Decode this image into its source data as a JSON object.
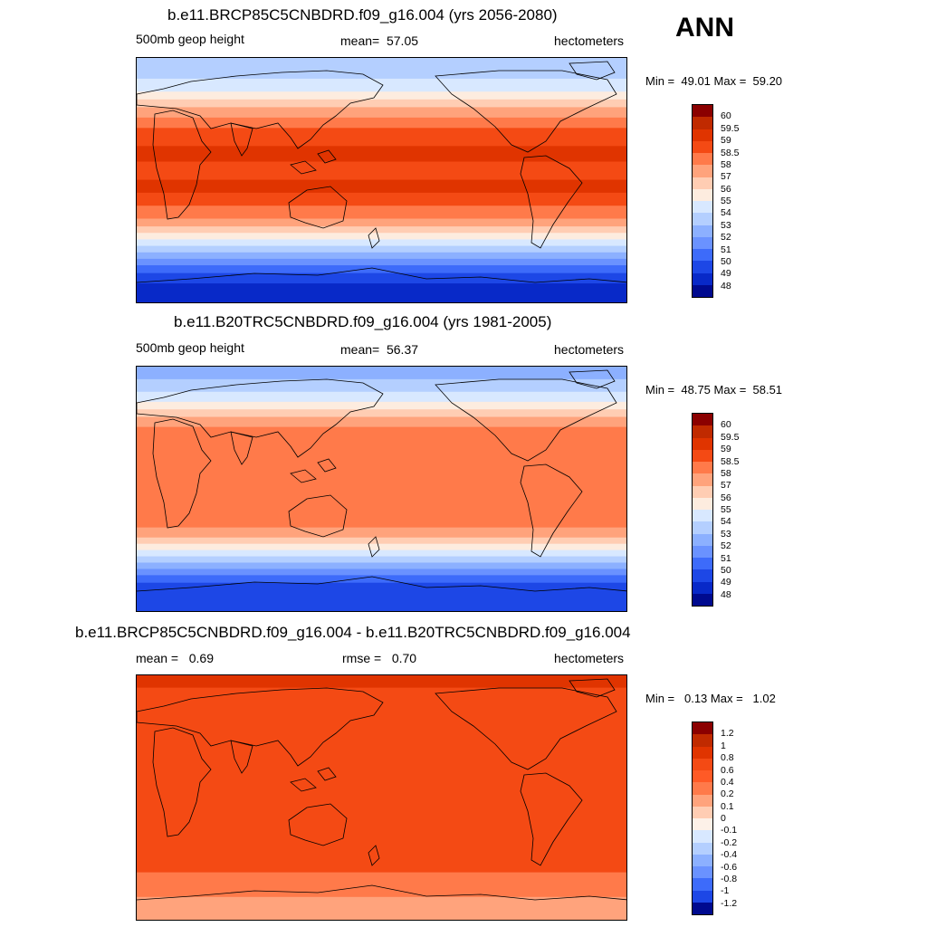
{
  "header": {
    "season": "ANN"
  },
  "panels": [
    {
      "title": "b.e11.BRCP85C5CNBDRD.f09_g16.004 (yrs 2056-2080)",
      "left_label": "500mb geop height",
      "center_label": "mean=  57.05",
      "right_label": "hectometers",
      "minmax": "Min =  49.01 Max =  59.20",
      "colorbar": {
        "labels": [
          "60",
          "59.5",
          "59",
          "58.5",
          "58",
          "57",
          "56",
          "55",
          "54",
          "53",
          "52",
          "51",
          "50",
          "49",
          "48"
        ],
        "colors": [
          "#8b0000",
          "#c02a00",
          "#e03400",
          "#f44a14",
          "#ff7a4a",
          "#ffa37c",
          "#ffcdb3",
          "#fdecdf",
          "#d8e8ff",
          "#b4cfff",
          "#8cb0ff",
          "#6a92ff",
          "#3d6bfa",
          "#1d47e6",
          "#0829c8",
          "#000a8f"
        ]
      },
      "field": {
        "bands": [
          {
            "color": "#b4cfff",
            "h": 0.08
          },
          {
            "color": "#d8e8ff",
            "h": 0.05
          },
          {
            "color": "#fdecdf",
            "h": 0.03
          },
          {
            "color": "#ffcdb3",
            "h": 0.03
          },
          {
            "color": "#ffa37c",
            "h": 0.04
          },
          {
            "color": "#ff7a4a",
            "h": 0.04
          },
          {
            "color": "#f44a14",
            "h": 0.07
          },
          {
            "color": "#e03400",
            "h": 0.06
          },
          {
            "color": "#f44a14",
            "h": 0.07
          },
          {
            "color": "#e03400",
            "h": 0.05
          },
          {
            "color": "#f44a14",
            "h": 0.05
          },
          {
            "color": "#ff7a4a",
            "h": 0.05
          },
          {
            "color": "#ffa37c",
            "h": 0.03
          },
          {
            "color": "#ffcdb3",
            "h": 0.025
          },
          {
            "color": "#fdecdf",
            "h": 0.025
          },
          {
            "color": "#d8e8ff",
            "h": 0.025
          },
          {
            "color": "#b4cfff",
            "h": 0.025
          },
          {
            "color": "#8cb0ff",
            "h": 0.025
          },
          {
            "color": "#6a92ff",
            "h": 0.025
          },
          {
            "color": "#3d6bfa",
            "h": 0.03
          },
          {
            "color": "#1d47e6",
            "h": 0.04
          },
          {
            "color": "#0829c8",
            "h": 0.08
          }
        ]
      }
    },
    {
      "title": "b.e11.B20TRC5CNBDRD.f09_g16.004 (yrs 1981-2005)",
      "left_label": "500mb geop height",
      "center_label": "mean=  56.37",
      "right_label": "hectometers",
      "minmax": "Min =  48.75 Max =  58.51",
      "colorbar": {
        "labels": [
          "60",
          "59.5",
          "59",
          "58.5",
          "58",
          "57",
          "56",
          "55",
          "54",
          "53",
          "52",
          "51",
          "50",
          "49",
          "48"
        ],
        "colors": [
          "#8b0000",
          "#c02a00",
          "#e03400",
          "#f44a14",
          "#ff7a4a",
          "#ffa37c",
          "#ffcdb3",
          "#fdecdf",
          "#d8e8ff",
          "#b4cfff",
          "#8cb0ff",
          "#6a92ff",
          "#3d6bfa",
          "#1d47e6",
          "#0829c8",
          "#000a8f"
        ]
      },
      "field": {
        "bands": [
          {
            "color": "#8cb0ff",
            "h": 0.05
          },
          {
            "color": "#b4cfff",
            "h": 0.05
          },
          {
            "color": "#d8e8ff",
            "h": 0.04
          },
          {
            "color": "#fdecdf",
            "h": 0.03
          },
          {
            "color": "#ffcdb3",
            "h": 0.03
          },
          {
            "color": "#ffa37c",
            "h": 0.04
          },
          {
            "color": "#ff7a4a",
            "h": 0.4
          },
          {
            "color": "#ffa37c",
            "h": 0.04
          },
          {
            "color": "#ffcdb3",
            "h": 0.025
          },
          {
            "color": "#fdecdf",
            "h": 0.025
          },
          {
            "color": "#d8e8ff",
            "h": 0.025
          },
          {
            "color": "#b4cfff",
            "h": 0.025
          },
          {
            "color": "#8cb0ff",
            "h": 0.025
          },
          {
            "color": "#6a92ff",
            "h": 0.025
          },
          {
            "color": "#3d6bfa",
            "h": 0.03
          },
          {
            "color": "#1d47e6",
            "h": 0.12
          }
        ]
      }
    },
    {
      "title": "b.e11.BRCP85C5CNBDRD.f09_g16.004 - b.e11.B20TRC5CNBDRD.f09_g16.004",
      "left_label": "mean =   0.69",
      "center_label": "rmse =   0.70",
      "right_label": "hectometers",
      "minmax": "Min =   0.13 Max =   1.02",
      "colorbar": {
        "labels": [
          "1.2",
          "1",
          "0.8",
          "0.6",
          "0.4",
          "0.2",
          "0.1",
          "0",
          "-0.1",
          "-0.2",
          "-0.4",
          "-0.6",
          "-0.8",
          "-1",
          "-1.2"
        ],
        "colors": [
          "#8b0000",
          "#c02a00",
          "#e03400",
          "#f44a14",
          "#ff5a26",
          "#ff7a4a",
          "#ffa37c",
          "#ffcdb3",
          "#fdf1e8",
          "#d8e8ff",
          "#b4cfff",
          "#8cb0ff",
          "#6a92ff",
          "#3d6bfa",
          "#1d47e6",
          "#000a8f"
        ]
      },
      "field": {
        "bands": [
          {
            "color": "#e03400",
            "h": 0.05
          },
          {
            "color": "#f44a14",
            "h": 0.75
          },
          {
            "color": "#ff7a4a",
            "h": 0.1
          },
          {
            "color": "#ffa37c",
            "h": 0.1
          }
        ]
      }
    }
  ]
}
